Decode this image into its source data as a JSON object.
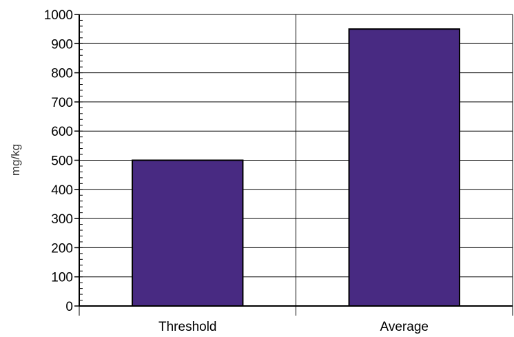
{
  "chart_data": {
    "type": "bar",
    "title": "",
    "xlabel": "",
    "ylabel": "mg/kg",
    "categories": [
      "Threshold",
      "Average"
    ],
    "values": [
      500,
      950
    ],
    "ylim": [
      0,
      1000
    ],
    "yticks": [
      0,
      100,
      200,
      300,
      400,
      500,
      600,
      700,
      800,
      900,
      1000
    ],
    "ytick_labels": [
      "0",
      "100",
      "200",
      "300",
      "400",
      "500",
      "600",
      "700",
      "800",
      "900",
      "1000"
    ],
    "grid": "horizontal and vertical",
    "legend": "none",
    "bar_color": "#482a82",
    "bar_edge_color": "#000000"
  }
}
